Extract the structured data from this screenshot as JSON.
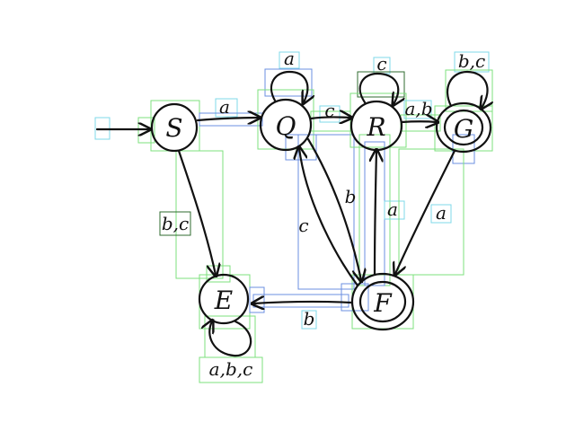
{
  "diagram": {
    "states": [
      {
        "id": "S",
        "label": "S",
        "accepting": false,
        "initial": true
      },
      {
        "id": "Q",
        "label": "Q",
        "accepting": false,
        "initial": false
      },
      {
        "id": "R",
        "label": "R",
        "accepting": false,
        "initial": false
      },
      {
        "id": "G",
        "label": "G",
        "accepting": true,
        "initial": false
      },
      {
        "id": "E",
        "label": "E",
        "accepting": false,
        "initial": false
      },
      {
        "id": "F",
        "label": "F",
        "accepting": true,
        "initial": false
      }
    ],
    "transitions": [
      {
        "from": "S",
        "to": "Q",
        "label": "a"
      },
      {
        "from": "Q",
        "to": "Q",
        "label": "a"
      },
      {
        "from": "Q",
        "to": "R",
        "label": "c"
      },
      {
        "from": "R",
        "to": "R",
        "label": "c"
      },
      {
        "from": "R",
        "to": "G",
        "label": "a,b"
      },
      {
        "from": "G",
        "to": "G",
        "label": "b,c"
      },
      {
        "from": "S",
        "to": "E",
        "label": "b,c"
      },
      {
        "from": "Q",
        "to": "F",
        "label": "b"
      },
      {
        "from": "F",
        "to": "Q",
        "label": "c"
      },
      {
        "from": "F",
        "to": "R",
        "label": "a"
      },
      {
        "from": "G",
        "to": "F",
        "label": "a"
      },
      {
        "from": "F",
        "to": "E",
        "label": "b"
      },
      {
        "from": "E",
        "to": "E",
        "label": "a,b,c"
      }
    ],
    "colors": {
      "ink": "#111111",
      "box_green": "#7de07d",
      "box_blue": "#6b8fe0",
      "box_cyan": "#7fd8e8"
    }
  }
}
